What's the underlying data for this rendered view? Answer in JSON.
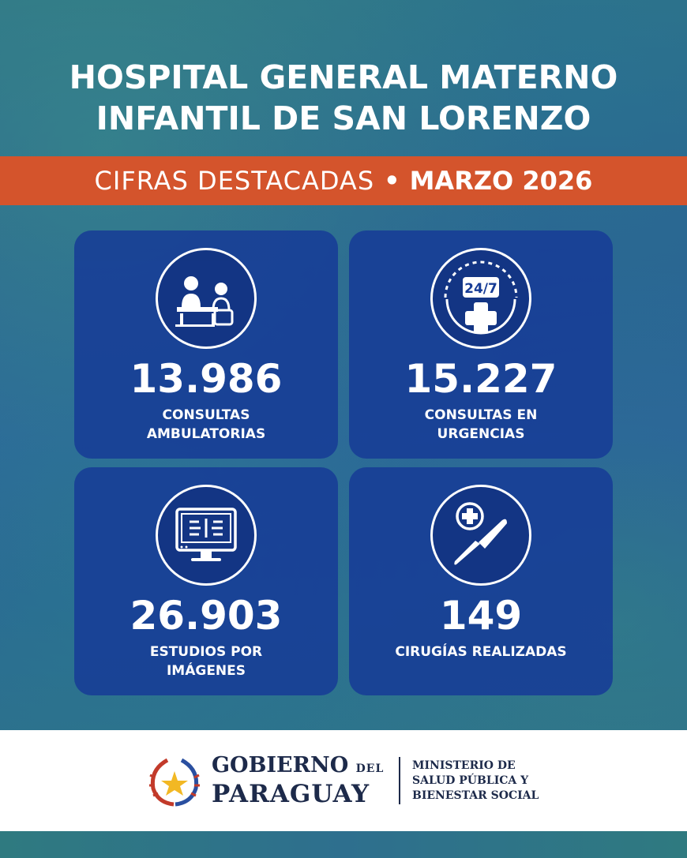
{
  "header": {
    "title_line1": "HOSPITAL GENERAL MATERNO",
    "title_line2": "INFANTIL DE SAN LORENZO"
  },
  "band": {
    "label": "CIFRAS DESTACADAS",
    "separator": "•",
    "period": "MARZO 2026"
  },
  "stats": [
    {
      "icon": "consultation-icon",
      "value": "13.986",
      "label_line1": "CONSULTAS",
      "label_line2": "AMBULATORIAS"
    },
    {
      "icon": "emergency-24-7-icon",
      "icon_text": "24/7",
      "value": "15.227",
      "label_line1": "CONSULTAS EN",
      "label_line2": "URGENCIAS"
    },
    {
      "icon": "imaging-monitor-icon",
      "value": "26.903",
      "label_line1": "ESTUDIOS POR",
      "label_line2": "IMÁGENES"
    },
    {
      "icon": "scalpel-icon",
      "value": "149",
      "label_line1": "CIRUGÍAS REALIZADAS",
      "label_line2": ""
    }
  ],
  "footer": {
    "gov_line1": "GOBIERNO",
    "gov_del": "DEL",
    "gov_line2": "PARAGUAY",
    "ministry_line1": "MINISTERIO DE",
    "ministry_line2": "SALUD PÚBLICA Y",
    "ministry_line3": "BIENESTAR SOCIAL"
  },
  "colors": {
    "band": "#d4542c",
    "card": "#173c96",
    "footer_text": "#1d2a4a"
  }
}
